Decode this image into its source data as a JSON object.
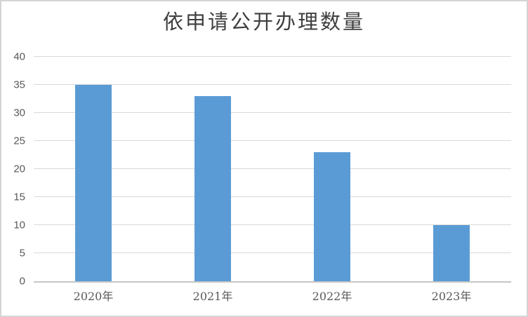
{
  "chart_data": {
    "type": "bar",
    "title": "依申请公开办理数量",
    "categories": [
      "2020年",
      "2021年",
      "2022年",
      "2023年"
    ],
    "values": [
      35,
      33,
      23,
      10
    ],
    "series": [
      {
        "name": "依申请公开办理数量",
        "values": [
          35,
          33,
          23,
          10
        ]
      }
    ],
    "xlabel": "",
    "ylabel": "",
    "ylim": [
      0,
      40
    ],
    "ytick_step": 5,
    "yticks": [
      0,
      5,
      10,
      15,
      20,
      25,
      30,
      35,
      40
    ],
    "grid": true,
    "legend_visible": false,
    "colors": {
      "bar": "#5B9BD5",
      "gridline": "#D9D9D9",
      "axis_line": "#C6C6C6",
      "tick_label": "#595959",
      "title": "#3F3F3F",
      "background": "#FFFFFF",
      "frame_border": "#D4D4D4"
    }
  }
}
